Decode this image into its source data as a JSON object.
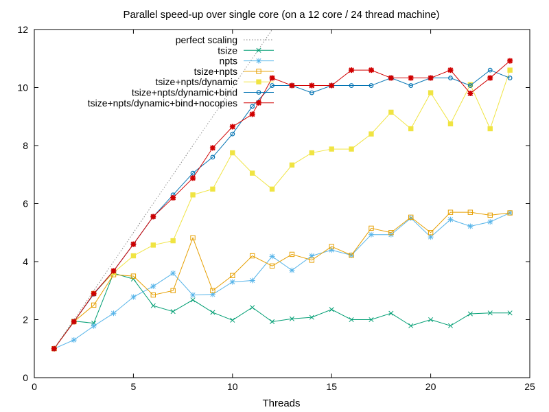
{
  "chart_data": {
    "type": "line",
    "title": "Parallel speed-up over single core (on a 12 core / 24 thread machine)",
    "xlabel": "Threads",
    "ylabel": "",
    "xlim": [
      0,
      25
    ],
    "ylim": [
      0,
      12
    ],
    "xticks": [
      0,
      5,
      10,
      15,
      20,
      25
    ],
    "yticks": [
      0,
      2,
      4,
      6,
      8,
      10,
      12
    ],
    "grid": false,
    "legend_position": "top-left",
    "series": [
      {
        "name": "perfect scaling",
        "color": "#888888",
        "style": "dotted",
        "marker": "none",
        "x": [
          1,
          12.2
        ],
        "y": [
          1,
          12.2
        ]
      },
      {
        "name": "tsize",
        "color": "#009e73",
        "marker": "x",
        "x": [
          1,
          2,
          3,
          4,
          5,
          6,
          7,
          8,
          9,
          10,
          11,
          12,
          13,
          14,
          15,
          16,
          17,
          18,
          19,
          20,
          21,
          22,
          23,
          24
        ],
        "y": [
          1.0,
          1.95,
          1.88,
          3.6,
          3.4,
          2.48,
          2.28,
          2.68,
          2.25,
          1.98,
          2.42,
          1.93,
          2.03,
          2.08,
          2.35,
          2.0,
          2.0,
          2.22,
          1.79,
          2.0,
          1.79,
          2.2,
          2.23,
          2.23
        ]
      },
      {
        "name": "npts",
        "color": "#56b4e9",
        "marker": "star",
        "x": [
          1,
          2,
          3,
          4,
          5,
          6,
          7,
          8,
          9,
          10,
          11,
          12,
          13,
          14,
          15,
          16,
          17,
          18,
          19,
          20,
          21,
          22,
          23,
          24
        ],
        "y": [
          1.0,
          1.3,
          1.78,
          2.22,
          2.78,
          3.15,
          3.6,
          2.85,
          2.87,
          3.3,
          3.35,
          4.18,
          3.7,
          4.2,
          4.4,
          4.22,
          4.93,
          4.93,
          5.5,
          4.85,
          5.45,
          5.22,
          5.37,
          5.68
        ]
      },
      {
        "name": "tsize+npts",
        "color": "#e69f00",
        "marker": "square-open",
        "x": [
          1,
          2,
          3,
          4,
          5,
          6,
          7,
          8,
          9,
          10,
          11,
          12,
          13,
          14,
          15,
          16,
          17,
          18,
          19,
          20,
          21,
          22,
          23,
          24
        ],
        "y": [
          1.0,
          1.93,
          2.5,
          3.55,
          3.5,
          2.85,
          3.0,
          4.82,
          3.0,
          3.52,
          4.2,
          3.85,
          4.25,
          4.05,
          4.52,
          4.22,
          5.15,
          5.0,
          5.53,
          5.0,
          5.7,
          5.7,
          5.6,
          5.68
        ]
      },
      {
        "name": "tsize+npts/dynamic",
        "color": "#f0e442",
        "marker": "square-filled",
        "x": [
          1,
          2,
          3,
          4,
          5,
          6,
          7,
          8,
          9,
          10,
          11,
          12,
          13,
          14,
          15,
          16,
          17,
          18,
          19,
          20,
          21,
          22,
          23,
          24
        ],
        "y": [
          1.0,
          1.93,
          2.9,
          3.62,
          4.2,
          4.57,
          4.72,
          6.3,
          6.5,
          7.75,
          7.05,
          6.5,
          7.33,
          7.75,
          7.88,
          7.88,
          8.4,
          9.15,
          8.58,
          9.82,
          8.75,
          10.1,
          8.58,
          10.6
        ]
      },
      {
        "name": "tsize+npts/dynamic+bind",
        "color": "#0072b2",
        "marker": "circle-open",
        "x": [
          1,
          2,
          3,
          4,
          5,
          6,
          7,
          8,
          9,
          10,
          11,
          12,
          13,
          14,
          15,
          16,
          17,
          18,
          19,
          20,
          21,
          22,
          23,
          24
        ],
        "y": [
          1.0,
          1.93,
          2.88,
          3.68,
          4.6,
          5.55,
          6.3,
          7.05,
          7.6,
          8.4,
          9.35,
          10.07,
          10.07,
          9.82,
          10.07,
          10.07,
          10.07,
          10.33,
          10.07,
          10.33,
          10.33,
          10.07,
          10.6,
          10.33
        ]
      },
      {
        "name": "tsize+npts/dynamic+bind+nocopies",
        "color": "#d00000",
        "marker": "star-filled",
        "x": [
          1,
          2,
          3,
          4,
          5,
          6,
          7,
          8,
          9,
          10,
          11,
          12,
          13,
          14,
          15,
          16,
          17,
          18,
          19,
          20,
          21,
          22,
          23,
          24
        ],
        "y": [
          1.0,
          1.93,
          2.9,
          3.68,
          4.6,
          5.55,
          6.2,
          6.88,
          7.92,
          8.65,
          9.08,
          10.33,
          10.07,
          10.07,
          10.07,
          10.6,
          10.6,
          10.33,
          10.33,
          10.33,
          10.6,
          9.8,
          10.33,
          10.92
        ]
      }
    ]
  }
}
